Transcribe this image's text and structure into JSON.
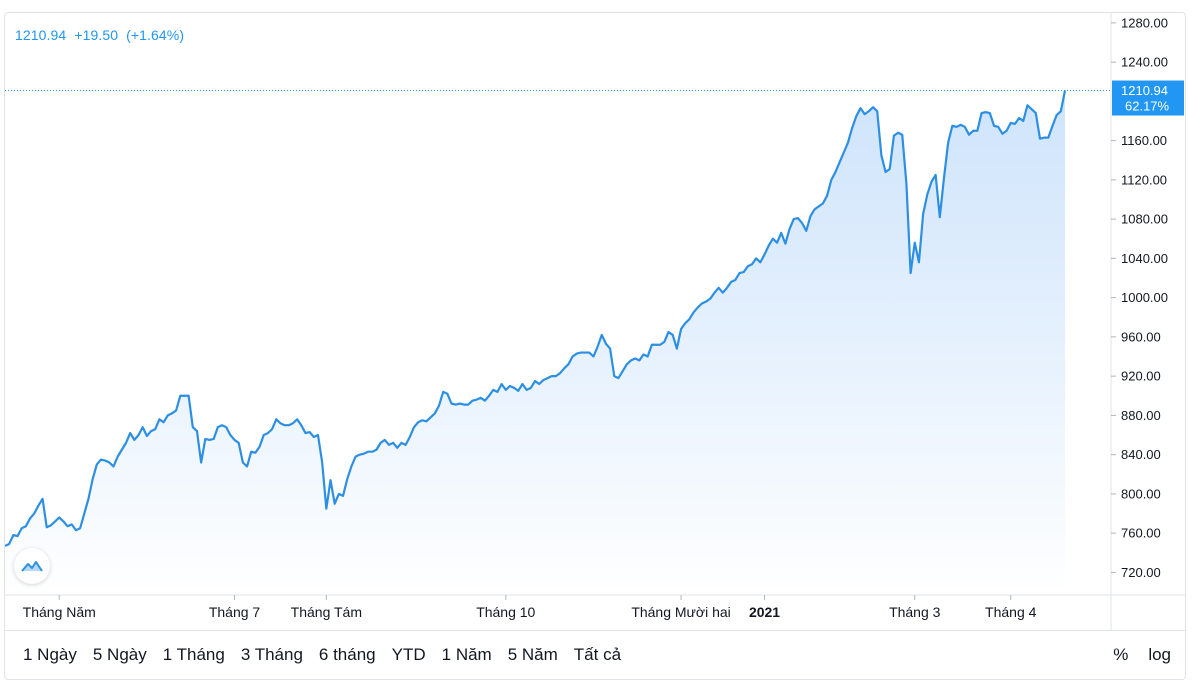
{
  "legend": {
    "price": "1210.94",
    "change": "+19.50",
    "change_pct": "(+1.64%)"
  },
  "last_price_label": {
    "price": "1210.94",
    "percent": "62.17%"
  },
  "colors": {
    "line": "#2d8fe3",
    "fill_top": "#c9e1fb",
    "fill_bottom": "#ffffff",
    "label_bg": "#2196f3",
    "legend": "#2196f3"
  },
  "range_buttons": [
    "1 Ngày",
    "5 Ngày",
    "1 Tháng",
    "3 Tháng",
    "6 tháng",
    "YTD",
    "1 Năm",
    "5 Năm",
    "Tất cả"
  ],
  "scale_buttons": {
    "percent": "%",
    "log": "log"
  },
  "logo_icon": "tradingview-logo-icon",
  "chart_data": {
    "type": "area",
    "title": "",
    "xlabel": "",
    "ylabel": "",
    "ylim": [
      697,
      1290
    ],
    "y_ticks": [
      "720.00",
      "760.00",
      "800.00",
      "840.00",
      "880.00",
      "920.00",
      "960.00",
      "1000.00",
      "1040.00",
      "1080.00",
      "1120.00",
      "1160.00",
      "1240.00",
      "1280.00"
    ],
    "y_tick_values": [
      720,
      760,
      800,
      840,
      880,
      920,
      960,
      1000,
      1040,
      1080,
      1120,
      1160,
      1240,
      1280
    ],
    "x_labels": [
      {
        "label": "Tháng Năm",
        "index": 13,
        "bold": false
      },
      {
        "label": "Tháng 7",
        "index": 55,
        "bold": false
      },
      {
        "label": "Tháng Tám",
        "index": 77,
        "bold": false
      },
      {
        "label": "Tháng 10",
        "index": 120,
        "bold": false
      },
      {
        "label": "Tháng Mười hai",
        "index": 162,
        "bold": false
      },
      {
        "label": "2021",
        "index": 182,
        "bold": true
      },
      {
        "label": "Tháng 3",
        "index": 218,
        "bold": false
      },
      {
        "label": "Tháng 4",
        "index": 241,
        "bold": false
      }
    ],
    "series": [
      {
        "values": [
          747,
          749,
          758,
          757,
          765,
          767,
          775,
          780,
          788,
          795,
          766,
          768,
          772,
          776,
          772,
          767,
          769,
          763,
          765,
          780,
          795,
          815,
          830,
          835,
          834,
          832,
          828,
          838,
          845,
          852,
          862,
          855,
          860,
          868,
          859,
          864,
          866,
          876,
          873,
          880,
          882,
          885,
          900,
          900,
          900,
          868,
          864,
          832,
          856,
          855,
          856,
          868,
          870,
          868,
          860,
          855,
          852,
          832,
          828,
          843,
          842,
          848,
          860,
          862,
          866,
          876,
          872,
          870,
          870,
          872,
          876,
          870,
          862,
          863,
          858,
          860,
          832,
          785,
          814,
          790,
          800,
          798,
          815,
          828,
          838,
          840,
          841,
          843,
          843,
          845,
          852,
          855,
          850,
          852,
          847,
          852,
          850,
          858,
          868,
          873,
          875,
          874,
          878,
          882,
          890,
          904,
          902,
          892,
          891,
          892,
          891,
          891,
          895,
          896,
          898,
          895,
          900,
          906,
          904,
          912,
          906,
          910,
          908,
          905,
          912,
          906,
          908,
          915,
          912,
          916,
          918,
          920,
          920,
          923,
          928,
          932,
          940,
          943,
          944,
          944,
          944,
          940,
          950,
          962,
          953,
          948,
          920,
          918,
          925,
          932,
          936,
          938,
          936,
          942,
          940,
          952,
          952,
          952,
          955,
          965,
          962,
          948,
          968,
          974,
          978,
          985,
          990,
          994,
          996,
          999,
          1005,
          1010,
          1005,
          1010,
          1016,
          1018,
          1025,
          1026,
          1032,
          1034,
          1040,
          1036,
          1044,
          1053,
          1060,
          1056,
          1066,
          1055,
          1070,
          1080,
          1081,
          1076,
          1068,
          1083,
          1090,
          1093,
          1096,
          1104,
          1120,
          1128,
          1138,
          1148,
          1158,
          1173,
          1185,
          1193,
          1187,
          1190,
          1194,
          1190,
          1145,
          1128,
          1131,
          1165,
          1168,
          1166,
          1116,
          1025,
          1056,
          1036,
          1085,
          1105,
          1118,
          1125,
          1082,
          1122,
          1158,
          1175,
          1174,
          1176,
          1174,
          1166,
          1170,
          1170,
          1188,
          1189,
          1188,
          1175,
          1174,
          1167,
          1170,
          1178,
          1177,
          1183,
          1180,
          1196,
          1192,
          1188,
          1162,
          1163,
          1163,
          1175,
          1186,
          1190,
          1211
        ]
      }
    ]
  }
}
